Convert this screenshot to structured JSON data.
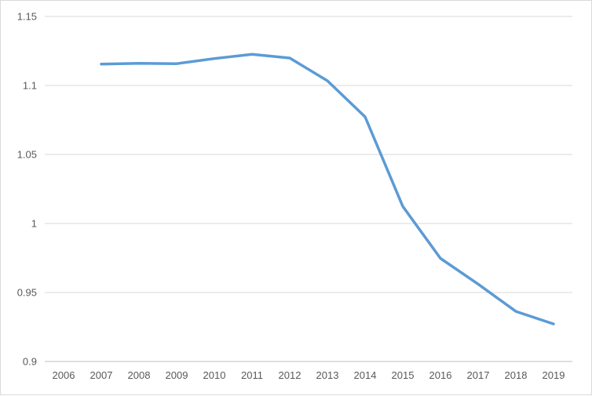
{
  "chart_data": {
    "type": "line",
    "title": "",
    "xlabel": "",
    "ylabel": "",
    "categories": [
      "2006",
      "2007",
      "2008",
      "2009",
      "2010",
      "2011",
      "2012",
      "2013",
      "2014",
      "2015",
      "2016",
      "2017",
      "2018",
      "2019"
    ],
    "series": [
      {
        "color": "#5b9bd5",
        "values": [
          null,
          1.1155,
          1.1161,
          1.1158,
          1.1195,
          1.1226,
          1.1199,
          1.1034,
          1.0773,
          1.0124,
          0.9747,
          0.9561,
          0.9363,
          0.9272
        ]
      }
    ],
    "ylim": [
      0.9,
      1.15
    ],
    "yticks": [
      "0.9",
      "0.95",
      "1",
      "1.05",
      "1.1",
      "1.15"
    ],
    "grid": true,
    "legend": "none"
  }
}
